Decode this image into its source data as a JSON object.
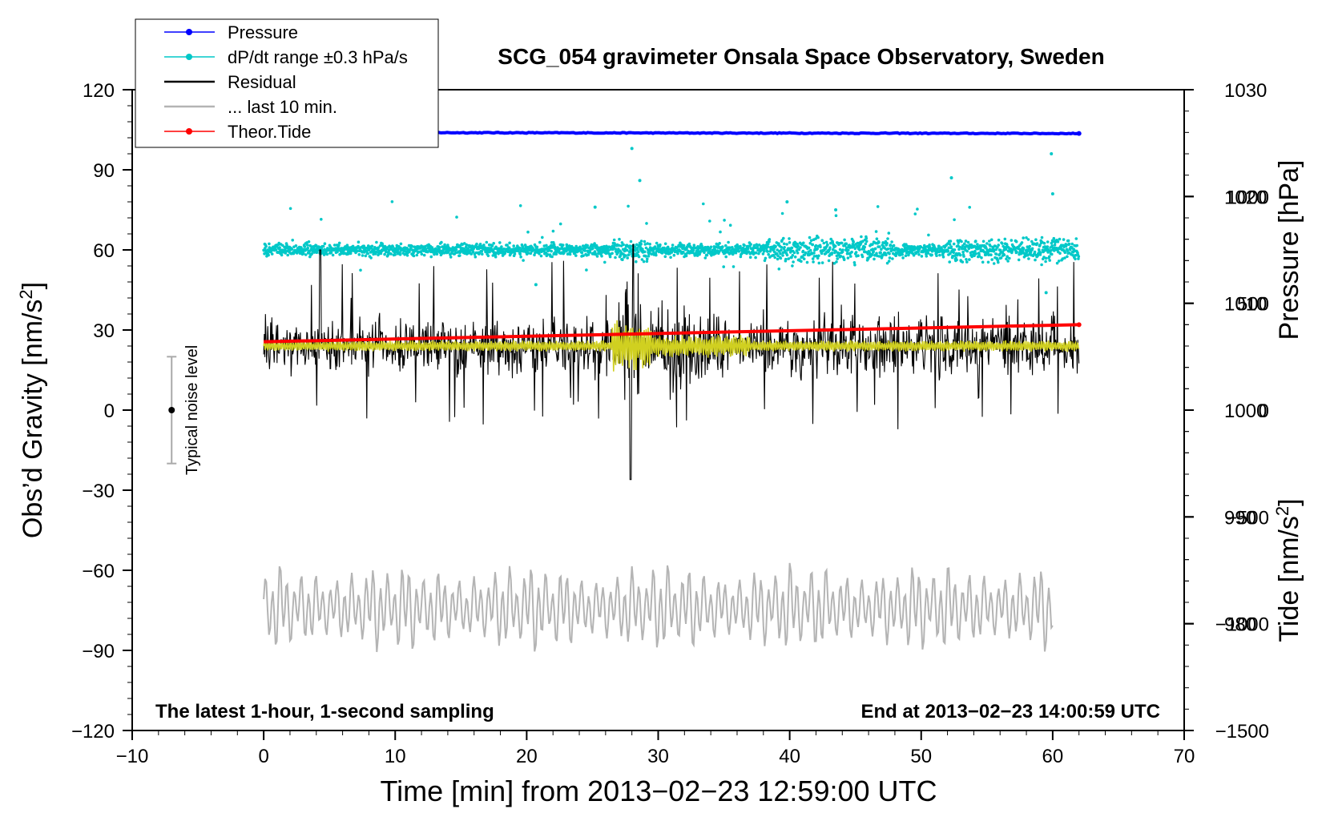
{
  "chart_data": {
    "type": "line",
    "title": "SCG_054 gravimeter Onsala Space Observatory, Sweden",
    "xlabel": "Time [min] from 2013−02−23 12:59:00 UTC",
    "ylabel_left": "Obs’d Gravity [nm/s",
    "ylabel_left_sup": "2",
    "ylabel_left_close": "]",
    "ylabel_right_pressure": "Pressure [hPa]",
    "ylabel_right_tide": "Tide [nm/s",
    "ylabel_right_tide_sup": "2",
    "ylabel_right_tide_close": "]",
    "xlim": [
      -10,
      70
    ],
    "ylim": [
      -120,
      120
    ],
    "pressure_axis": {
      "range": [
        970,
        1030
      ],
      "ticks": [
        "980",
        "990",
        "1000",
        "1010",
        "1020",
        "1030"
      ]
    },
    "tide_axis": {
      "range": [
        -1500,
        1500
      ],
      "ticks": [
        "−1500",
        "−1000",
        "−500",
        "0",
        "500",
        "1000"
      ]
    },
    "x_ticks": [
      "−10",
      "0",
      "10",
      "20",
      "30",
      "40",
      "50",
      "60",
      "70"
    ],
    "y_ticks": [
      "−120",
      "−90",
      "−60",
      "−30",
      "0",
      "30",
      "60",
      "90",
      "120"
    ],
    "legend": {
      "position": "top-left",
      "entries": [
        {
          "label": "Pressure",
          "color": "#0000ff",
          "marker": "dot"
        },
        {
          "label": "dP/dt range ±0.3 hPa/s",
          "color": "#00c8c8",
          "marker": "dot"
        },
        {
          "label": "Residual",
          "color": "#000000",
          "marker": "none"
        },
        {
          "label": "... last 10 min.",
          "color": "#b4b4b4",
          "marker": "none"
        },
        {
          "label": "Theor.Tide",
          "color": "#ff0000",
          "marker": "dot"
        }
      ]
    },
    "series": [
      {
        "name": "Pressure",
        "axis": "pressure",
        "x_range": [
          0,
          62
        ],
        "values_hPa": {
          "start": 1026.0,
          "end": 1025.9
        },
        "color": "#0000ff"
      },
      {
        "name": "dP/dt range ±0.3 hPa/s",
        "axis": "gravity",
        "x_range": [
          0,
          62
        ],
        "center": 60,
        "spread": 5,
        "outliers_up_to": 98,
        "color": "#00c8c8"
      },
      {
        "name": "Residual",
        "axis": "gravity",
        "x_range": [
          0,
          62
        ],
        "center": 24,
        "typical_range": [
          5,
          40
        ],
        "extremes": [
          -26,
          62
        ],
        "extreme_near_x": 28,
        "color": "#000000"
      },
      {
        "name": "Residual (smoothed)",
        "axis": "gravity",
        "x_range": [
          0,
          62
        ],
        "center": 24,
        "color": "#d0d020"
      },
      {
        "name": "Theor.Tide",
        "axis": "tide",
        "x_range": [
          0,
          62
        ],
        "values_nm_s2": {
          "start": 320,
          "end": 400
        },
        "color": "#ff0000"
      },
      {
        "name": "... last 10 min.",
        "axis": "gravity",
        "x_range": [
          0,
          60
        ],
        "center": -74,
        "range": [
          -97,
          -52
        ],
        "color": "#b4b4b4"
      }
    ],
    "noise_bar": {
      "x": -7,
      "center": 0,
      "low": -20,
      "high": 20,
      "label": "Typical noise level"
    },
    "annotations": {
      "bottom_left": "The latest 1-hour, 1-second sampling",
      "bottom_right": "End at 2013−02−23 14:00:59 UTC"
    },
    "grid": false
  }
}
